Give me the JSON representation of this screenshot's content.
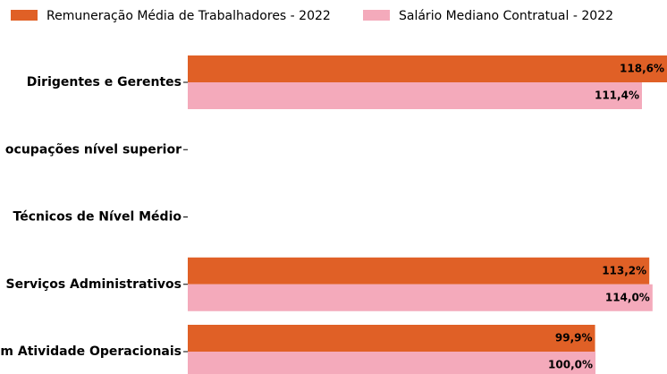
{
  "chart_data": {
    "type": "barh",
    "categories": [
      "Dirigentes e Gerentes",
      "ocupações nível superior",
      "Técnicos de Nível Médio",
      "Serviços Administrativos",
      "m Atividade Operacionais"
    ],
    "series": [
      {
        "name": "Remuneração Média de Trabalhadores - 2022",
        "color": "#e06026",
        "values": [
          118.6,
          null,
          null,
          113.2,
          99.9
        ],
        "value_labels": [
          "118,6%",
          null,
          null,
          "113,2%",
          "99,9%"
        ]
      },
      {
        "name": "Salário Mediano Contratual - 2022",
        "color": "#f4aabb",
        "values": [
          111.4,
          null,
          null,
          114.0,
          100.0
        ],
        "value_labels": [
          "111,4%",
          null,
          null,
          "114,0%",
          "100,0%"
        ]
      }
    ],
    "legend": "top"
  }
}
